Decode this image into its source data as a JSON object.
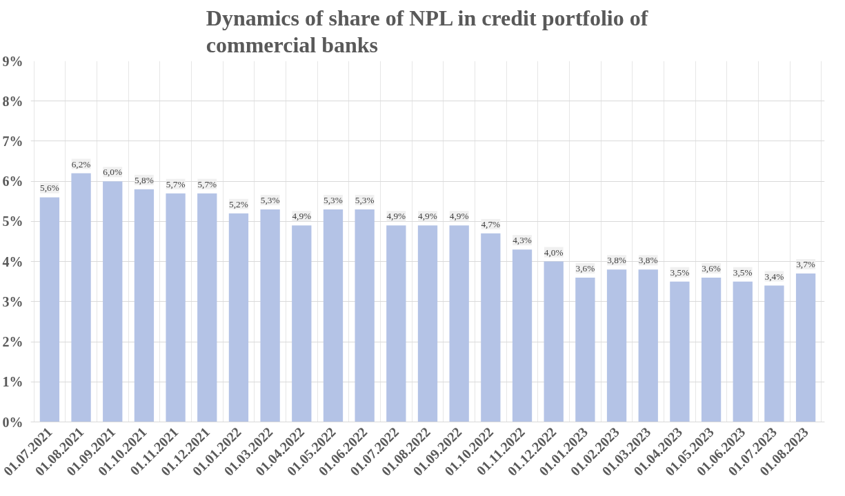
{
  "chart_data": {
    "type": "bar",
    "title": "Dynamics of share of NPL in credit portfolio of\ncommercial banks",
    "categories": [
      "01.07.2021",
      "01.08.2021",
      "01.09.2021",
      "01.10.2021",
      "01.11.2021",
      "01.12.2021",
      "01.01.2022",
      "01.03.2022",
      "01.04.2022",
      "01.05.2022",
      "01.06.2022",
      "01.07.2022",
      "01.08.2022",
      "01.09.2022",
      "01.10.2022",
      "01.11.2022",
      "01.12.2022",
      "01.01.2023",
      "01.02.2023",
      "01.03.2023",
      "01.04.2023",
      "01.05.2023",
      "01.06.2023",
      "01.07.2023",
      "01.08.2023"
    ],
    "values": [
      5.6,
      6.2,
      6.0,
      5.8,
      5.7,
      5.7,
      5.2,
      5.3,
      4.9,
      5.3,
      5.3,
      4.9,
      4.9,
      4.9,
      4.7,
      4.3,
      4.0,
      3.6,
      3.8,
      3.8,
      3.5,
      3.6,
      3.5,
      3.4,
      3.7
    ],
    "value_labels": [
      "5,6%",
      "6,2%",
      "6,0%",
      "5,8%",
      "5,7%",
      "5,7%",
      "5,2%",
      "5,3%",
      "4,9%",
      "5,3%",
      "5,3%",
      "4,9%",
      "4,9%",
      "4,9%",
      "4,7%",
      "4,3%",
      "4,0%",
      "3,6%",
      "3,8%",
      "3,8%",
      "3,5%",
      "3,6%",
      "3,5%",
      "3,4%",
      "3,7%"
    ],
    "color": "#b4c3e6",
    "ylim": [
      0,
      9
    ],
    "yticks": [
      {
        "value": 0,
        "label": "0%"
      },
      {
        "value": 1,
        "label": "1%"
      },
      {
        "value": 2,
        "label": "2%"
      },
      {
        "value": 3,
        "label": "3%"
      },
      {
        "value": 4,
        "label": "4%"
      },
      {
        "value": 5,
        "label": "5%"
      },
      {
        "value": 6,
        "label": "6%"
      },
      {
        "value": 7,
        "label": "7%"
      },
      {
        "value": 8,
        "label": "8%"
      },
      {
        "value": 9,
        "label": "9%"
      }
    ],
    "grid": true
  }
}
